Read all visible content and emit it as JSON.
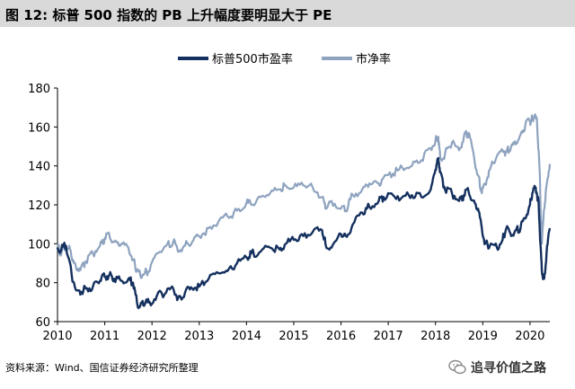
{
  "header": {
    "title": "图 12:  标普 500 指数的 PB 上升幅度要明显大于 PE"
  },
  "footer": {
    "source": "资料来源：Wind、国信证券经济研究所整理",
    "watermark": "追寻价值之路"
  },
  "chart_data": {
    "type": "line",
    "title": "",
    "xlabel": "",
    "ylabel": "",
    "xlim": [
      2010.0,
      2020.42
    ],
    "ylim": [
      60,
      180
    ],
    "yticks": [
      60,
      80,
      100,
      120,
      140,
      160,
      180
    ],
    "xticks": [
      "2010",
      "2011",
      "2012",
      "2013",
      "2014",
      "2015",
      "2016",
      "2017",
      "2018",
      "2019",
      "2020"
    ],
    "grid": false,
    "legend_position": "top",
    "series": [
      {
        "name": "标普500市盈率",
        "color": "#14305e",
        "x": [
          2010.0,
          2010.08,
          2010.18,
          2010.3,
          2010.4,
          2010.5,
          2010.6,
          2010.75,
          2010.9,
          2011.0,
          2011.1,
          2011.2,
          2011.35,
          2011.5,
          2011.6,
          2011.68,
          2011.75,
          2011.85,
          2011.95,
          2012.1,
          2012.3,
          2012.45,
          2012.55,
          2012.7,
          2012.85,
          2013.0,
          2013.2,
          2013.4,
          2013.6,
          2013.8,
          2014.0,
          2014.1,
          2014.3,
          2014.5,
          2014.7,
          2014.83,
          2015.0,
          2015.2,
          2015.4,
          2015.6,
          2015.67,
          2015.8,
          2016.0,
          2016.1,
          2016.25,
          2016.45,
          2016.6,
          2016.8,
          2016.9,
          2017.1,
          2017.3,
          2017.5,
          2017.7,
          2017.9,
          2018.0,
          2018.06,
          2018.1,
          2018.2,
          2018.35,
          2018.5,
          2018.6,
          2018.7,
          2018.8,
          2018.9,
          2018.98,
          2019.05,
          2019.15,
          2019.3,
          2019.42,
          2019.5,
          2019.6,
          2019.7,
          2019.8,
          2019.9,
          2020.0,
          2020.05,
          2020.12,
          2020.18,
          2020.22,
          2020.25,
          2020.3,
          2020.35,
          2020.42
        ],
        "values": [
          98,
          97,
          99,
          84,
          76,
          75,
          77,
          78,
          81,
          83,
          84,
          82,
          81,
          82,
          80,
          70,
          68,
          69,
          70,
          73,
          75,
          77,
          72,
          75,
          77,
          78,
          82,
          85,
          86,
          90,
          93,
          95,
          96,
          98,
          97,
          100,
          102,
          104,
          106,
          107,
          100,
          98,
          105,
          104,
          110,
          116,
          119,
          122,
          124,
          125,
          124,
          125,
          124,
          128,
          138,
          144,
          137,
          128,
          126,
          122,
          125,
          127,
          122,
          118,
          108,
          100,
          99,
          98,
          102,
          108,
          104,
          107,
          108,
          113,
          120,
          126,
          129,
          122,
          100,
          86,
          82,
          95,
          108
        ]
      },
      {
        "name": "市净率",
        "color": "#8ea3bf",
        "x": [
          2010.0,
          2010.05,
          2010.15,
          2010.25,
          2010.3,
          2010.4,
          2010.5,
          2010.6,
          2010.75,
          2010.9,
          2011.0,
          2011.1,
          2011.2,
          2011.35,
          2011.5,
          2011.6,
          2011.68,
          2011.75,
          2011.85,
          2011.95,
          2012.1,
          2012.3,
          2012.45,
          2012.55,
          2012.7,
          2012.85,
          2013.0,
          2013.2,
          2013.4,
          2013.6,
          2013.8,
          2014.0,
          2014.1,
          2014.3,
          2014.5,
          2014.7,
          2014.83,
          2015.0,
          2015.2,
          2015.4,
          2015.6,
          2015.67,
          2015.8,
          2016.0,
          2016.1,
          2016.25,
          2016.45,
          2016.6,
          2016.8,
          2016.9,
          2017.1,
          2017.3,
          2017.5,
          2017.7,
          2017.9,
          2018.0,
          2018.06,
          2018.1,
          2018.2,
          2018.35,
          2018.5,
          2018.6,
          2018.7,
          2018.8,
          2018.9,
          2018.98,
          2019.05,
          2019.15,
          2019.3,
          2019.42,
          2019.5,
          2019.6,
          2019.7,
          2019.8,
          2019.9,
          2020.0,
          2020.05,
          2020.1,
          2020.15,
          2020.2,
          2020.25,
          2020.3,
          2020.35,
          2020.42
        ],
        "values": [
          100,
          95,
          97,
          99,
          93,
          87,
          88,
          91,
          95,
          99,
          103,
          104,
          101,
          100,
          98,
          92,
          86,
          84,
          85,
          86,
          95,
          99,
          101,
          96,
          99,
          101,
          104,
          108,
          111,
          114,
          117,
          121,
          120,
          124,
          126,
          128,
          130,
          129,
          130,
          129,
          124,
          118,
          122,
          118,
          117,
          125,
          128,
          131,
          131,
          134,
          136,
          139,
          140,
          143,
          149,
          153,
          155,
          144,
          146,
          152,
          148,
          155,
          157,
          147,
          135,
          126,
          131,
          138,
          145,
          148,
          147,
          150,
          151,
          156,
          161,
          163,
          164,
          166,
          162,
          140,
          100,
          118,
          130,
          141
        ]
      }
    ]
  }
}
